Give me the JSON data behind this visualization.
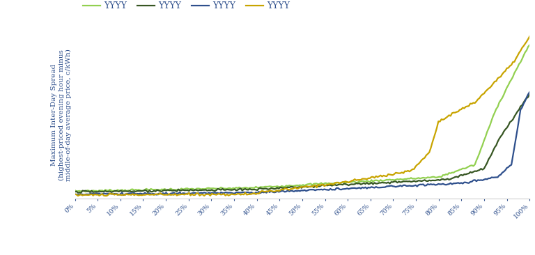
{
  "ylabel": "Maximum Inter-Day Spread\n(highest-priced evening hour minus\nmiddle-of-day average price, c/kWh)",
  "xlabel_ticks": [
    "0%",
    "5%",
    "10%",
    "15%",
    "20%",
    "25%",
    "30%",
    "35%",
    "40%",
    "45%",
    "50%",
    "55%",
    "60%",
    "65%",
    "70%",
    "75%",
    "80%",
    "85%",
    "90%",
    "95%",
    "100%"
  ],
  "series": [
    {
      "label": "YYYY",
      "color": "#92d050",
      "linewidth": 1.6
    },
    {
      "label": "YYYY",
      "color": "#375623",
      "linewidth": 1.6
    },
    {
      "label": "YYYY",
      "color": "#2e4f8c",
      "linewidth": 1.6
    },
    {
      "label": "YYYY",
      "color": "#c8a400",
      "linewidth": 1.6
    }
  ],
  "legend_label_color": "#2e4f8c",
  "axis_label_color": "#2e4f8c",
  "tick_color": "#2e4f8c",
  "background_color": "#ffffff",
  "grid_color": "#d0d0d0",
  "n_points": 300
}
